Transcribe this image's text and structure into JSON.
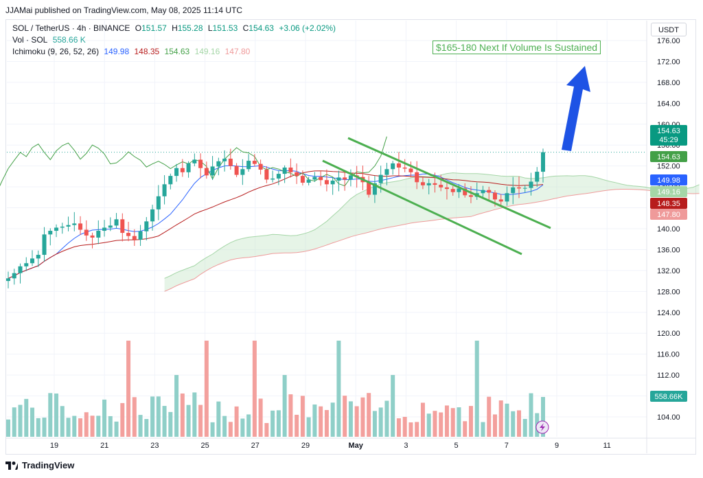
{
  "publisher": "JJAMai published on TradingView.com, May 08, 2025 11:14 UTC",
  "legend": {
    "symbol": "SOL / TetherUS · 4h · BINANCE",
    "o_label": "O",
    "o_value": "151.57",
    "h_label": "H",
    "h_value": "155.28",
    "l_label": "L",
    "l_value": "151.53",
    "c_label": "C",
    "c_value": "154.63",
    "change": "+3.06 (+2.02%)",
    "vol_label": "Vol · SOL",
    "vol_value": "558.66 K",
    "ichimoku_label": "Ichimoku (9, 26, 52, 26)",
    "ichimoku_values": [
      "149.98",
      "148.35",
      "154.63",
      "149.16",
      "147.80"
    ]
  },
  "currency_button": "USDT",
  "annotation": "$165-180 Next If Volume Is Sustained",
  "footer_brand": "TradingView",
  "colors": {
    "up": "#26a69a",
    "down": "#ef5350",
    "vol_up": "#8fcfc8",
    "vol_down": "#f3a09d",
    "conversion": "#2962ff",
    "base": "#b71c1c",
    "lagging": "#43a047",
    "span_a": "#a5d6a7",
    "span_b": "#ef9a9a",
    "channel": "#4caf50",
    "arrow": "#1e53e5"
  },
  "price_tags": [
    {
      "text": "154.63",
      "sub": "45:29",
      "color": "#089981"
    },
    {
      "text": "154.63",
      "color": "#43a047"
    },
    {
      "text": "149.98",
      "color": "#2962ff"
    },
    {
      "text": "149.16",
      "color": "#a5d6a7"
    },
    {
      "text": "148.35",
      "color": "#b71c1c"
    },
    {
      "text": "147.80",
      "color": "#ef9a9a"
    },
    {
      "text": "558.66K",
      "color": "#26a69a"
    }
  ],
  "chart_data": {
    "type": "candlestick",
    "title": "SOL / TetherUS · 4h · BINANCE",
    "y_ticks": [
      "104.00",
      "108.00",
      "112.00",
      "116.00",
      "120.00",
      "124.00",
      "128.00",
      "132.00",
      "136.00",
      "140.00",
      "144.00",
      "148.00",
      "152.00",
      "156.00",
      "160.00",
      "164.00",
      "168.00",
      "172.00",
      "176.00"
    ],
    "x_ticks": [
      "19",
      "21",
      "23",
      "25",
      "27",
      "29",
      "May",
      "3",
      "5",
      "7",
      "9",
      "11"
    ],
    "ylim": [
      101.5,
      178.5
    ],
    "close_series_approx": [
      130.5,
      131.5,
      132.8,
      133.4,
      134.3,
      135.0,
      138.9,
      139.6,
      140.2,
      140.4,
      140.7,
      141.0,
      139.8,
      138.7,
      138.3,
      139.6,
      140.2,
      140.6,
      141.8,
      139.2,
      138.6,
      137.9,
      139.5,
      141.4,
      143.7,
      146.2,
      148.5,
      150.1,
      151.6,
      150.8,
      152.5,
      153.2,
      151.6,
      150.2,
      151.9,
      152.9,
      153.4,
      152.0,
      150.3,
      151.4,
      153.0,
      152.4,
      151.3,
      149.4,
      149.6,
      150.5,
      151.7,
      150.8,
      150.1,
      148.8,
      149.4,
      149.9,
      149.3,
      148.5,
      149.2,
      149.8,
      149.4,
      150.2,
      149.9,
      148.9,
      146.5,
      148.7,
      150.3,
      151.4,
      152.5,
      151.7,
      151.5,
      150.8,
      148.9,
      148.3,
      148.7,
      148.4,
      147.9,
      147.6,
      147.0,
      147.7,
      146.4,
      146.1,
      146.8,
      147.4,
      146.9,
      145.6,
      145.2,
      146.8,
      147.9,
      147.7,
      147.8,
      149.0,
      150.9,
      154.63
    ],
    "volume_series_approx": [
      "mixed bars, tallest around Apr 20, Apr 22, Apr 25 and Apr 30; last bar 558.66K"
    ],
    "indicators": [
      "Ichimoku (9, 26, 52, 26)",
      "Vol · SOL"
    ],
    "annotations": [
      "$165-180 Next If Volume Is Sustained"
    ]
  }
}
